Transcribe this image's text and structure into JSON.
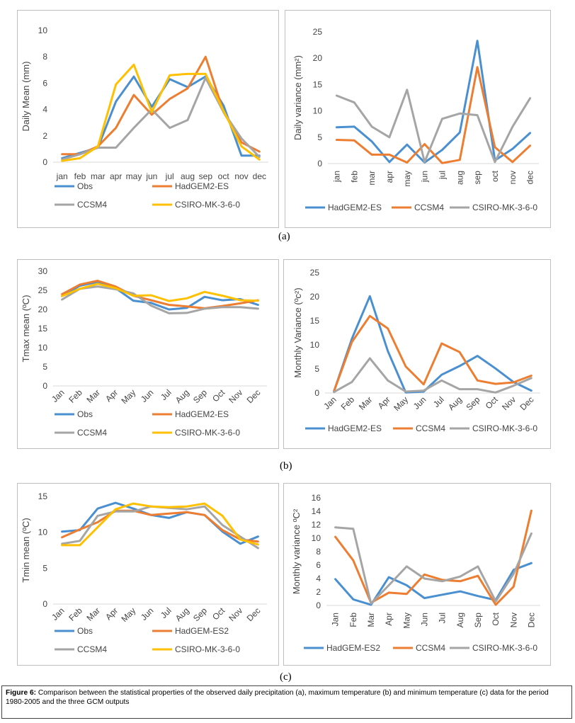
{
  "colors": {
    "blue": "#4a90d1",
    "orange": "#ed7d31",
    "gray": "#a5a5a5",
    "yellow": "#ffc000"
  },
  "labels": {
    "a": "(a)",
    "b": "(b)",
    "c": "(c)"
  },
  "caption": {
    "prefix": "Figure 6:",
    "text": " Comparison between the statistical properties of the observed daily precipitation (a), maximum temperature (b) and minimum temperature (c) data for the period 1980-2005 and the three GCM outputs"
  },
  "chart_data": [
    {
      "id": "a-left",
      "type": "line",
      "ylabel": "Daily Mean (mm)",
      "ylim": [
        0,
        10
      ],
      "yticks": [
        0,
        2,
        4,
        6,
        8,
        10
      ],
      "categories": [
        "jan",
        "feb",
        "mar",
        "apr",
        "may",
        "jun",
        "jul",
        "aug",
        "sep",
        "oct",
        "nov",
        "dec"
      ],
      "x_rotated": false,
      "legend_cols": 2,
      "series": [
        {
          "name": "Obs",
          "color": "blue",
          "values": [
            0.3,
            0.7,
            1.1,
            4.6,
            6.5,
            4.2,
            6.3,
            5.7,
            6.5,
            4.3,
            0.5,
            0.5
          ]
        },
        {
          "name": "HadGEM2-ES",
          "color": "orange",
          "values": [
            0.6,
            0.6,
            1.2,
            2.6,
            5.1,
            3.6,
            4.8,
            5.6,
            8.0,
            3.8,
            1.5,
            0.8
          ]
        },
        {
          "name": "CCSM4",
          "color": "gray",
          "values": [
            0.2,
            0.6,
            1.1,
            1.1,
            2.6,
            4.0,
            2.6,
            3.2,
            6.4,
            3.8,
            1.8,
            0.4
          ]
        },
        {
          "name": "CSIRO-MK-3-6-0",
          "color": "yellow",
          "values": [
            0.1,
            0.3,
            1.2,
            5.9,
            7.4,
            3.8,
            6.6,
            6.7,
            6.7,
            3.9,
            1.2,
            0.2
          ]
        }
      ]
    },
    {
      "id": "a-right",
      "type": "line",
      "ylabel": "Daily variance (mm²)",
      "ylim": [
        0,
        25
      ],
      "yticks": [
        0,
        5,
        10,
        15,
        20,
        25
      ],
      "categories": [
        "jan",
        "feb",
        "mar",
        "apr",
        "may",
        "jun",
        "jul",
        "aug",
        "sep",
        "oct",
        "nov",
        "dec"
      ],
      "x_rotated": true,
      "legend_cols": 3,
      "series": [
        {
          "name": "HadGEM2-ES",
          "color": "blue",
          "values": [
            6.9,
            7.0,
            4.2,
            0.3,
            3.6,
            0.2,
            2.6,
            5.9,
            23.3,
            0.6,
            2.8,
            5.8
          ]
        },
        {
          "name": "CCSM4",
          "color": "orange",
          "values": [
            4.5,
            4.4,
            1.7,
            1.7,
            0.2,
            3.7,
            0.1,
            0.7,
            18.3,
            3.1,
            0.3,
            3.4
          ]
        },
        {
          "name": "CSIRO-MK-3-6-0",
          "color": "gray",
          "values": [
            12.9,
            11.6,
            7.0,
            5.0,
            14.0,
            0.3,
            8.5,
            9.5,
            9.2,
            0.3,
            7.0,
            12.4
          ]
        }
      ]
    },
    {
      "id": "b-left",
      "type": "line",
      "ylabel": "Tmax mean (ºC)",
      "ylim": [
        0,
        30
      ],
      "yticks": [
        0,
        5,
        10,
        15,
        20,
        25,
        30
      ],
      "categories": [
        "Jan",
        "Feb",
        "Mar",
        "Apr",
        "May",
        "Jun",
        "Jul",
        "Aug",
        "Sep",
        "Oct",
        "Nov",
        "Dec"
      ],
      "x_rotated": true,
      "legend_cols": 2,
      "series": [
        {
          "name": "Obs",
          "color": "blue",
          "values": [
            23.5,
            26.2,
            27.2,
            25.6,
            22.3,
            21.7,
            20.0,
            20.4,
            23.3,
            22.4,
            22.7,
            21.2
          ]
        },
        {
          "name": "HadGEM2-ES",
          "color": "orange",
          "values": [
            24.0,
            26.5,
            27.5,
            26.0,
            23.6,
            22.4,
            21.2,
            20.8,
            20.3,
            20.9,
            21.6,
            22.4
          ]
        },
        {
          "name": "CCSM4",
          "color": "gray",
          "values": [
            22.6,
            25.4,
            26.0,
            25.3,
            24.2,
            21.0,
            19.0,
            19.1,
            20.2,
            20.6,
            20.6,
            20.2
          ]
        },
        {
          "name": "CSIRO-MK-3-6-0",
          "color": "yellow",
          "values": [
            23.5,
            25.4,
            26.7,
            25.6,
            23.6,
            23.7,
            22.2,
            22.9,
            24.6,
            23.6,
            22.4,
            22.3
          ]
        }
      ]
    },
    {
      "id": "b-right",
      "type": "line",
      "ylabel": "Monthly Variance (ºc²)",
      "ylim": [
        0,
        25
      ],
      "yticks": [
        0,
        5,
        10,
        15,
        20,
        25
      ],
      "categories": [
        "Jan",
        "Feb",
        "Mar",
        "Apr",
        "May",
        "Jun",
        "Jul",
        "Aug",
        "Sep",
        "Oct",
        "Nov",
        "Dec"
      ],
      "x_rotated": true,
      "legend_cols": 3,
      "series": [
        {
          "name": "HadGEM2-ES",
          "color": "blue",
          "values": [
            0.4,
            11.3,
            20.1,
            8.7,
            0.1,
            0.3,
            3.8,
            5.6,
            7.7,
            5.1,
            2.3,
            0.5
          ]
        },
        {
          "name": "CCSM4",
          "color": "orange",
          "values": [
            0.4,
            10.6,
            16.0,
            13.4,
            5.5,
            1.8,
            10.3,
            8.5,
            2.6,
            1.9,
            2.2,
            3.6
          ]
        },
        {
          "name": "CSIRO-MK-3-6-0",
          "color": "gray",
          "values": [
            0.2,
            2.3,
            7.2,
            2.6,
            0.3,
            0.5,
            2.6,
            0.8,
            0.8,
            0.1,
            1.5,
            3.1
          ]
        }
      ]
    },
    {
      "id": "c-left",
      "type": "line",
      "ylabel": "Tmin mean (ºC)",
      "ylim": [
        0,
        15
      ],
      "yticks": [
        0,
        5,
        10,
        15
      ],
      "categories": [
        "Jan",
        "Feb",
        "Mar",
        "Apr",
        "May",
        "Jun",
        "Jul",
        "Aug",
        "Sep",
        "Oct",
        "Nov",
        "Dec"
      ],
      "x_rotated": true,
      "legend_cols": 2,
      "series": [
        {
          "name": "Obs",
          "color": "blue",
          "values": [
            10.1,
            10.3,
            13.3,
            14.1,
            13.3,
            12.4,
            12.0,
            12.8,
            12.4,
            10.1,
            8.4,
            9.4
          ]
        },
        {
          "name": "HadGEM-ES2",
          "color": "orange",
          "values": [
            9.3,
            10.4,
            11.4,
            13.0,
            13.0,
            12.4,
            12.6,
            12.8,
            12.4,
            10.3,
            9.0,
            8.7
          ]
        },
        {
          "name": "CCSM4",
          "color": "gray",
          "values": [
            8.4,
            8.8,
            12.3,
            12.9,
            12.9,
            13.6,
            13.4,
            13.2,
            13.6,
            11.0,
            9.4,
            7.8
          ]
        },
        {
          "name": "CSIRO-MK-3-6-0",
          "color": "yellow",
          "values": [
            8.2,
            8.2,
            10.7,
            13.2,
            14.0,
            13.6,
            13.5,
            13.6,
            14.0,
            12.3,
            9.0,
            8.3
          ]
        }
      ]
    },
    {
      "id": "c-right",
      "type": "line",
      "ylabel": "Monthly variance ºC²",
      "ylim": [
        0,
        16
      ],
      "yticks": [
        0,
        2,
        4,
        6,
        8,
        10,
        12,
        14,
        16
      ],
      "categories": [
        "Jan",
        "Feb",
        "Mar",
        "Apr",
        "May",
        "Jun",
        "Jul",
        "Aug",
        "Sep",
        "Oct",
        "Nov",
        "Dec"
      ],
      "x_rotated": true,
      "legend_cols": 3,
      "series": [
        {
          "name": "HadGEM-ES2",
          "color": "blue",
          "values": [
            3.9,
            0.9,
            0.1,
            4.2,
            3.0,
            1.1,
            1.6,
            2.1,
            1.4,
            0.8,
            5.3,
            6.3
          ]
        },
        {
          "name": "CCSM4",
          "color": "orange",
          "values": [
            10.2,
            6.7,
            0.4,
            1.9,
            1.7,
            4.6,
            3.8,
            3.6,
            4.4,
            0.1,
            2.8,
            14.1
          ]
        },
        {
          "name": "CSIRO-MK-3-6-0",
          "color": "gray",
          "values": [
            11.6,
            11.4,
            0.3,
            3.0,
            5.8,
            4.0,
            3.6,
            4.3,
            5.8,
            0.6,
            4.7,
            10.7
          ]
        }
      ]
    }
  ]
}
